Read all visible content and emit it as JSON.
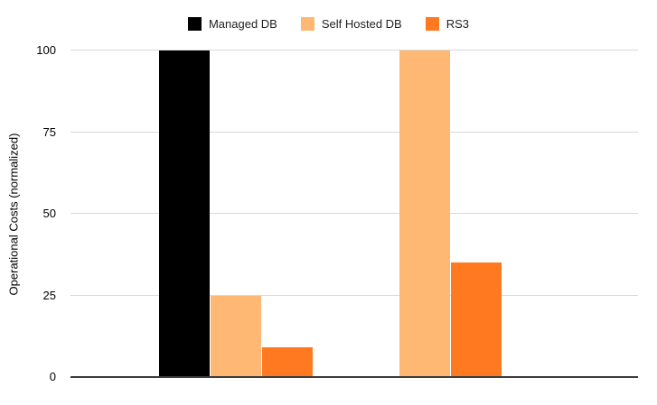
{
  "chart_data": {
    "type": "bar",
    "title": "",
    "xlabel": "",
    "ylabel": "Operational Costs (normalized)",
    "ylim": [
      0,
      100
    ],
    "yticks": [
      0,
      25,
      50,
      75,
      100
    ],
    "grid": true,
    "legend_position": "top",
    "categories": [
      "",
      ""
    ],
    "series": [
      {
        "name": "Managed DB",
        "color": "#000000",
        "values": [
          100,
          null
        ]
      },
      {
        "name": "Self Hosted DB",
        "color": "#FFB873",
        "values": [
          25,
          100
        ]
      },
      {
        "name": "RS3",
        "color": "#FF7920",
        "values": [
          9,
          35
        ]
      }
    ]
  },
  "colors": {
    "background": "#FFFFFF",
    "gridline": "#D9D9D9",
    "axis_line": "#3C3C3C",
    "text": "#000000"
  }
}
